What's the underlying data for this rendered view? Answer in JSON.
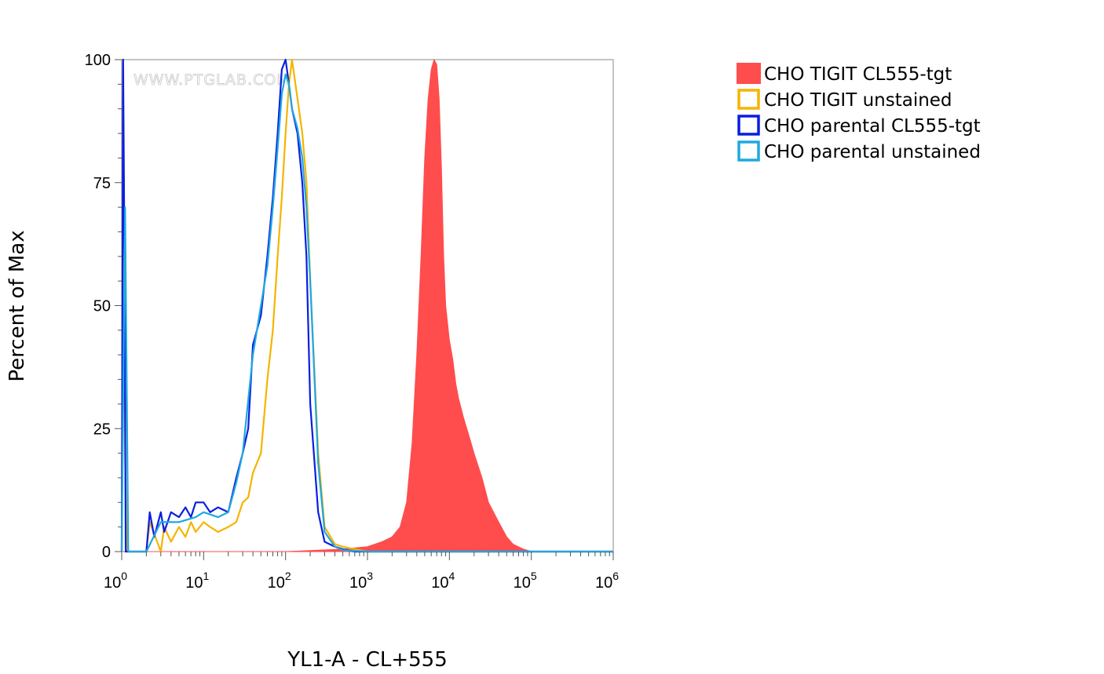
{
  "chart_data": {
    "type": "area",
    "xlabel": "YL1-A - CL+555",
    "ylabel": "Percent of Max",
    "x_scale": "log",
    "xlim": [
      1,
      1000000
    ],
    "ylim": [
      0,
      100
    ],
    "watermark": "WWW.PTGLAB.COM",
    "y_ticks": [
      {
        "value": 0,
        "label": "0"
      },
      {
        "value": 25,
        "label": "25"
      },
      {
        "value": 50,
        "label": "50"
      },
      {
        "value": 75,
        "label": "75"
      },
      {
        "value": 100,
        "label": "100"
      }
    ],
    "x_ticks": [
      {
        "value": 1,
        "base": "10",
        "exp": "0"
      },
      {
        "value": 10,
        "base": "10",
        "exp": "1"
      },
      {
        "value": 100,
        "base": "10",
        "exp": "2"
      },
      {
        "value": 1000,
        "base": "10",
        "exp": "3"
      },
      {
        "value": 10000,
        "base": "10",
        "exp": "4"
      },
      {
        "value": 100000,
        "base": "10",
        "exp": "5"
      },
      {
        "value": 1000000,
        "base": "10",
        "exp": "6"
      }
    ],
    "legend_position": "right",
    "series": [
      {
        "name": "CHO TIGIT CL555-tgt",
        "color": "#ff4d4d",
        "style": "filled",
        "x": [
          1,
          100,
          500,
          1000,
          1500,
          2000,
          2500,
          3000,
          3500,
          4000,
          4500,
          5000,
          5500,
          6000,
          6500,
          7000,
          7500,
          8000,
          8500,
          9000,
          10000,
          11000,
          12000,
          13000,
          15000,
          17000,
          20000,
          25000,
          30000,
          40000,
          50000,
          60000,
          80000,
          100000,
          1000000
        ],
        "y": [
          0,
          0,
          0.5,
          1,
          2,
          3,
          5,
          10,
          22,
          40,
          60,
          80,
          92,
          98,
          100,
          99,
          92,
          78,
          60,
          50,
          43,
          39,
          34,
          31,
          27,
          24,
          20,
          15,
          10,
          6,
          3,
          1.5,
          0.5,
          0,
          0
        ]
      },
      {
        "name": "CHO TIGIT unstained",
        "color": "#f5b400",
        "style": "line",
        "x": [
          1,
          1.05,
          1.1,
          1.15,
          1.5,
          2,
          2.2,
          3,
          3.3,
          4,
          5,
          6,
          7,
          8,
          10,
          12,
          15,
          20,
          25,
          30,
          35,
          40,
          50,
          60,
          70,
          80,
          90,
          100,
          110,
          120,
          140,
          160,
          180,
          200,
          250,
          300,
          400,
          500,
          700,
          1000,
          2000,
          10000,
          100000,
          1000000
        ],
        "y": [
          0,
          85,
          20,
          0,
          0,
          0,
          6,
          0,
          5,
          2,
          5,
          3,
          6,
          4,
          6,
          5,
          4,
          5,
          6,
          10,
          11,
          16,
          20,
          35,
          45,
          60,
          72,
          85,
          95,
          100,
          92,
          85,
          75,
          55,
          20,
          5,
          1.5,
          1,
          0.5,
          0,
          0,
          0,
          0,
          0
        ]
      },
      {
        "name": "CHO parental CL555-tgt",
        "color": "#0a1ee0",
        "style": "line",
        "x": [
          1,
          1.04,
          1.08,
          1.12,
          1.5,
          2,
          2.2,
          2.5,
          3,
          3.3,
          4,
          5,
          6,
          7,
          8,
          10,
          12,
          15,
          20,
          25,
          30,
          35,
          40,
          50,
          60,
          70,
          80,
          90,
          100,
          110,
          120,
          140,
          160,
          180,
          200,
          250,
          300,
          400,
          500,
          700,
          1000,
          10000,
          100000,
          1000000
        ],
        "y": [
          0,
          100,
          60,
          0,
          0,
          0,
          8,
          3,
          8,
          4,
          8,
          7,
          9,
          7,
          10,
          10,
          8,
          9,
          8,
          15,
          20,
          25,
          42,
          48,
          60,
          72,
          85,
          98,
          100,
          95,
          90,
          85,
          75,
          60,
          30,
          8,
          2,
          1,
          0.5,
          0,
          0,
          0,
          0,
          0
        ]
      },
      {
        "name": "CHO parental unstained",
        "color": "#1fa8e0",
        "style": "line",
        "x": [
          1,
          1.1,
          1.2,
          2,
          3,
          5,
          8,
          10,
          15,
          20,
          25,
          30,
          40,
          50,
          60,
          70,
          80,
          90,
          100,
          110,
          120,
          140,
          160,
          180,
          200,
          250,
          300,
          400,
          500,
          1000,
          10000,
          100000,
          1000000
        ],
        "y": [
          0,
          70,
          0,
          0,
          6,
          6,
          7,
          8,
          7,
          8,
          14,
          20,
          40,
          50,
          58,
          70,
          82,
          93,
          97,
          95,
          90,
          86,
          80,
          70,
          55,
          18,
          4,
          1,
          0.3,
          0,
          0,
          0,
          0
        ]
      }
    ]
  }
}
